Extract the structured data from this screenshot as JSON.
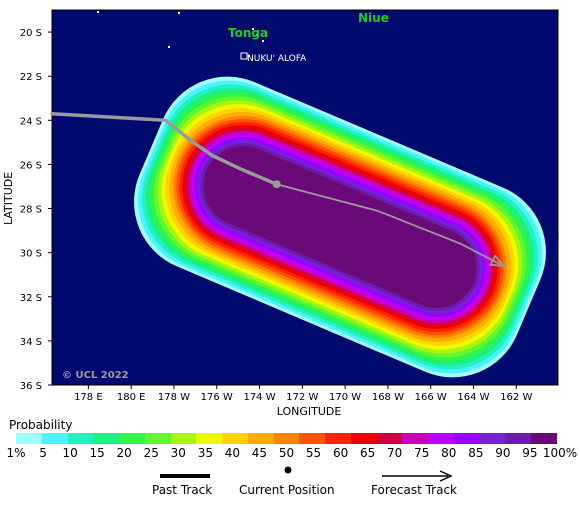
{
  "map": {
    "latitude_title": "LATITUDE",
    "longitude_title": "LONGITUDE",
    "lat_labels": [
      "20 S",
      "22 S",
      "24 S",
      "26 S",
      "28 S",
      "30 S",
      "32 S",
      "34 S",
      "36 S"
    ],
    "lon_labels": [
      "178 E",
      "180 E",
      "178 W",
      "176 W",
      "174 W",
      "172 W",
      "170 W",
      "168 W",
      "166 W",
      "164 W",
      "162 W"
    ],
    "places": {
      "tonga": "Tonga",
      "nukualofa": "NUKU' ALOFA",
      "niue": "Niue"
    },
    "credit": "© UCL 2022",
    "track": {
      "past_positions_lonlat": [
        [
          -178.4,
          24.0
        ],
        [
          -177.1,
          25.0
        ],
        [
          -176.2,
          25.6
        ],
        [
          -174.9,
          26.2
        ],
        [
          -173.2,
          26.9
        ]
      ],
      "current_position_lonlat": [
        -173.2,
        26.9
      ],
      "forecast_positions_lonlat": [
        [
          -173.2,
          26.9
        ],
        [
          -168.5,
          28.1
        ],
        [
          -164.6,
          29.6
        ],
        [
          -162.6,
          30.6
        ]
      ]
    },
    "colors": {
      "ocean": "#000a6e",
      "past_track": "#9a9a9a",
      "forecast_track": "#9a9a9a"
    }
  },
  "legend": {
    "title": "Probability",
    "labels": [
      "1%",
      "5",
      "10",
      "15",
      "20",
      "25",
      "30",
      "35",
      "40",
      "45",
      "50",
      "55",
      "60",
      "65",
      "70",
      "75",
      "80",
      "85",
      "90",
      "95",
      "100%"
    ],
    "colors": [
      "#9ffcff",
      "#4bf2ff",
      "#22f2c0",
      "#1cf080",
      "#2ef54a",
      "#62f62c",
      "#a8f512",
      "#eefa00",
      "#ffd200",
      "#ffad00",
      "#ff8300",
      "#ff5200",
      "#ff2200",
      "#ee0000",
      "#d10040",
      "#cc00bb",
      "#c000ff",
      "#9800ff",
      "#7820d8",
      "#6e1ab0",
      "#6a0a78"
    ],
    "key": {
      "past_track": "Past Track",
      "current_position": "Current Position",
      "forecast_track": "Forecast Track"
    }
  }
}
